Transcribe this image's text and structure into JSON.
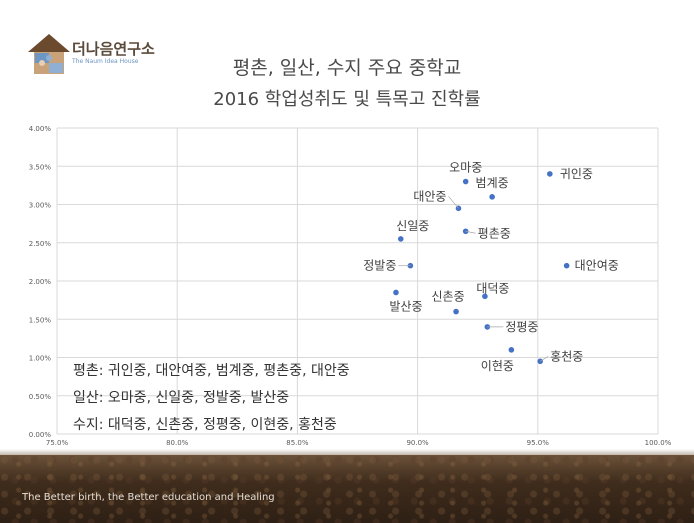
{
  "logo": {
    "name": "더나음연구소",
    "subtitle": "The Naum Idea House"
  },
  "title_lines": [
    "평촌, 일산, 수지 주요 중학교",
    "2016 학업성취도 및 특목고 진학률"
  ],
  "legend_text": [
    "평촌: 귀인중, 대안여중, 범계중, 평촌중, 대안중",
    "일산: 오마중, 신일중, 정발중, 발산중",
    "수지: 대덕중, 신촌중, 정평중, 이현중, 홍천중"
  ],
  "footer": "The Better birth, the Better education and Healing",
  "chart_data": {
    "type": "scatter",
    "title": "평촌, 일산, 수지 주요 중학교 2016 학업성취도 및 특목고 진학률",
    "xlim": [
      0.75,
      1.0
    ],
    "ylim": [
      0.0,
      0.04
    ],
    "x_ticks": [
      "75.0%",
      "80.0%",
      "85.0%",
      "90.0%",
      "95.0%",
      "100.0%"
    ],
    "y_ticks": [
      "0.00%",
      "0.50%",
      "1.00%",
      "1.50%",
      "2.00%",
      "2.50%",
      "3.00%",
      "3.50%",
      "4.00%"
    ],
    "grid": true,
    "point_color": "#4472c4",
    "points": [
      {
        "label": "귀인중",
        "x": 0.955,
        "y": 0.034
      },
      {
        "label": "오마중",
        "x": 0.92,
        "y": 0.033
      },
      {
        "label": "범계중",
        "x": 0.931,
        "y": 0.031
      },
      {
        "label": "대안중",
        "x": 0.917,
        "y": 0.0295
      },
      {
        "label": "평촌중",
        "x": 0.92,
        "y": 0.0265
      },
      {
        "label": "신일중",
        "x": 0.893,
        "y": 0.0255
      },
      {
        "label": "대안여중",
        "x": 0.962,
        "y": 0.022
      },
      {
        "label": "정발중",
        "x": 0.897,
        "y": 0.022
      },
      {
        "label": "발산중",
        "x": 0.891,
        "y": 0.0185
      },
      {
        "label": "대덕중",
        "x": 0.928,
        "y": 0.018
      },
      {
        "label": "신촌중",
        "x": 0.916,
        "y": 0.016
      },
      {
        "label": "정평중",
        "x": 0.929,
        "y": 0.014
      },
      {
        "label": "이현중",
        "x": 0.939,
        "y": 0.011
      },
      {
        "label": "홍천중",
        "x": 0.951,
        "y": 0.0095
      }
    ]
  }
}
